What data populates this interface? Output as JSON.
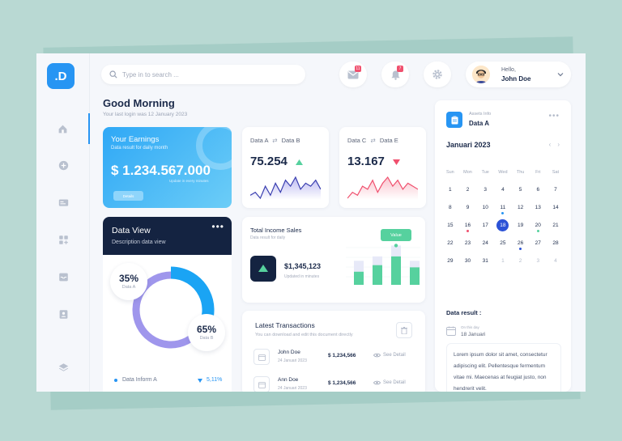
{
  "logo": ".D",
  "search": {
    "placeholder": "Type in to search ..."
  },
  "notifications": {
    "mail_count": "11",
    "bell_count": "7"
  },
  "user": {
    "greeting": "Hello,",
    "name": "John Doe"
  },
  "greeting": {
    "title": "Good Morning",
    "last_login": "Your last login was 12 January 2023"
  },
  "earnings": {
    "title": "Your Earnings",
    "subtitle": "Data result for daily month",
    "value": "$ 1.234.567.000",
    "updated": "Update in every minutes",
    "button": "Details"
  },
  "data_view": {
    "title": "Data View",
    "subtitle": "Description data view",
    "a_pct": "35%",
    "a_label": "Data A",
    "b_pct": "65%",
    "b_label": "Data B",
    "inform_label": "Data Inform A",
    "inform_value": "5,11%",
    "segments": [
      35,
      65
    ],
    "colors": {
      "a": "#1aa4f4",
      "b": "#9f96ec"
    }
  },
  "data_ab": {
    "a": "Data A",
    "b": "Data B",
    "value": "75.254",
    "trend": "up",
    "series": [
      3,
      4,
      2,
      6,
      3,
      7,
      4,
      8,
      6,
      9,
      5,
      7,
      6,
      8,
      5
    ]
  },
  "data_ce": {
    "c": "Data C",
    "e": "Data E",
    "value": "13.167",
    "trend": "down",
    "series": [
      3,
      5,
      4,
      7,
      6,
      9,
      5,
      8,
      10,
      7,
      9,
      6,
      8,
      7,
      6
    ]
  },
  "income": {
    "title": "Total Income Sales",
    "subtitle": "Data result for daily",
    "value": "$1,345,123",
    "updated": "Updated in minutes",
    "tag": "Value",
    "bars": [
      {
        "back": 55,
        "front": 30
      },
      {
        "back": 65,
        "front": 45
      },
      {
        "back": 90,
        "front": 65
      },
      {
        "back": 55,
        "front": 40
      }
    ]
  },
  "transactions": {
    "title": "Latest Transactions",
    "subtitle": "You can download and edit this document directly",
    "rows": [
      {
        "name": "John Doe",
        "date": "24 Januari 2023",
        "amount": "$ 1,234,566",
        "action": "See Detail"
      },
      {
        "name": "Ann Doe",
        "date": "24 Januari 2023",
        "amount": "$ 1,234,566",
        "action": "See Detail"
      }
    ]
  },
  "assets": {
    "subtitle": "Assets Info",
    "title": "Data A",
    "calendar": {
      "month": "Januari 2023",
      "weekdays": [
        "Sun",
        "Mon",
        "Tue",
        "Wed",
        "Thu",
        "Fri",
        "Sat"
      ],
      "days": [
        [
          "1",
          "2",
          "3",
          "4",
          "5",
          "6",
          "7"
        ],
        [
          "8",
          "9",
          "10",
          "11",
          "12",
          "13",
          "14"
        ],
        [
          "15",
          "16",
          "17",
          "18",
          "19",
          "20",
          "21"
        ],
        [
          "22",
          "23",
          "24",
          "25",
          "26",
          "27",
          "28"
        ],
        [
          "29",
          "30",
          "31",
          "1",
          "2",
          "3",
          "4"
        ]
      ],
      "rows_display": [
        [
          "",
          "",
          "",
          "",
          "",
          "",
          ""
        ],
        [
          "",
          "",
          "",
          "",
          "",
          "",
          ""
        ]
      ]
    },
    "data_result_title": "Data result :",
    "on_this_day": "On this day",
    "date": "18 Januari",
    "text": "Lorem ipsum dolor sit amet, consectetur adipiscing elit. Pellentesque fermentum vitae mi. Maecenas at feugiat justo, non hendrerit velit.",
    "axis": [
      "100",
      "60"
    ]
  },
  "colors": {
    "accent": "#2795f3",
    "navy": "#142341",
    "green": "#56d19e",
    "red": "#f0506e",
    "purple": "#9f96ec"
  }
}
